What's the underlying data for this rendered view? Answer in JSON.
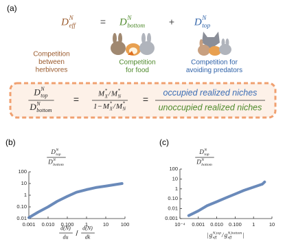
{
  "panel_a": {
    "label": "(a)",
    "eq_terms": [
      {
        "base": "D",
        "sup": "N",
        "sub": "eff",
        "color": "#9a5a2c"
      },
      {
        "base": "D",
        "sup": "N",
        "sub": "bottom",
        "color": "#4f8a2c"
      },
      {
        "base": "D",
        "sup": "N",
        "sub": "top",
        "color": "#2f62a8"
      }
    ],
    "operators": [
      "=",
      "+"
    ],
    "captions": [
      [
        "Competition",
        "between",
        "herbivores"
      ],
      [
        "Competition",
        "for food"
      ],
      [
        "Competition for",
        "avoiding predators"
      ]
    ],
    "ratio": {
      "num": {
        "base": "D",
        "sup": "N",
        "sub": "top"
      },
      "den": {
        "base": "D",
        "sup": "N",
        "sub": "bottom"
      }
    },
    "box_operators": [
      "=",
      "="
    ],
    "middle": {
      "num": [
        {
          "base": "M",
          "sup": "*",
          "sub": "X"
        },
        "/",
        {
          "base": "M",
          "sup": "*",
          "sub": "N"
        }
      ],
      "den": [
        "1−",
        {
          "base": "M",
          "sup": "*",
          "sub": "X"
        },
        "/",
        {
          "base": "M",
          "sup": "*",
          "sub": "N"
        }
      ]
    },
    "niches": {
      "num": "occupied realized niches",
      "den": "unoccupied realized niches",
      "num_color": "#3a6db5",
      "den_color": "#4d8a2a"
    }
  },
  "chart_data": [
    {
      "type": "line",
      "label": "(b)",
      "log_x": true,
      "log_y": true,
      "x": [
        0.001,
        0.003,
        0.01,
        0.03,
        0.1,
        0.3,
        1,
        3,
        10,
        30,
        70
      ],
      "series": [
        {
          "color": "#5a7db3",
          "values": [
            0.012,
            0.035,
            0.1,
            0.3,
            0.8,
            1.8,
            3,
            4.5,
            6,
            8,
            10
          ]
        }
      ],
      "xlim": [
        0.001,
        100
      ],
      "ylim": [
        0.01,
        100
      ],
      "xticks": [
        {
          "value": 0.001,
          "label": "0.001"
        },
        {
          "value": 0.01,
          "label": "0.010"
        },
        {
          "value": 0.1,
          "label": "0.100"
        },
        1,
        10,
        100
      ],
      "yticks": [
        0.01,
        {
          "value": 0.1,
          "label": "0.10"
        },
        1,
        10,
        100
      ],
      "ylabel": {
        "num": {
          "base": "D",
          "sup": "N",
          "sub": "top"
        },
        "den": {
          "base": "D",
          "sup": "N",
          "sub": "bottom"
        }
      },
      "xlabel": {
        "left": {
          "num": "d(N)",
          "den": "du"
        },
        "sep": "/",
        "right": {
          "num": "d(N)",
          "den": "dk"
        }
      }
    },
    {
      "type": "line",
      "label": "(c)",
      "log_x": true,
      "log_y": true,
      "x": [
        0.0003,
        0.001,
        0.003,
        0.01,
        0.03,
        0.1,
        0.3,
        1,
        3,
        4
      ],
      "series": [
        {
          "color": "#5a7db3",
          "values": [
            0.002,
            0.006,
            0.02,
            0.05,
            0.12,
            0.3,
            0.7,
            1.5,
            3,
            5
          ]
        }
      ],
      "xlim": [
        0.0001,
        10
      ],
      "ylim": [
        0.001,
        100
      ],
      "xticks": [
        {
          "value": 0.0001,
          "label": "10⁻⁴"
        },
        0.001,
        {
          "value": 0.01,
          "label": "0.010"
        },
        {
          "value": 0.1,
          "label": "0.100"
        },
        1,
        10
      ],
      "yticks": [
        0.001,
        0.01,
        {
          "value": 0.1,
          "label": "0.10"
        },
        1,
        10,
        100
      ],
      "ylabel": {
        "num": {
          "base": "D",
          "sup": "N",
          "sub": "top"
        },
        "den": {
          "base": "D",
          "sup": "N",
          "sub": "bottom"
        }
      },
      "xlabel": [
        "|",
        {
          "base": "g",
          "sup": "N,top",
          "sub": "eff"
        },
        "/",
        {
          "base": "g",
          "sup": "N,bottom",
          "sub": "eff"
        },
        "|"
      ]
    }
  ]
}
